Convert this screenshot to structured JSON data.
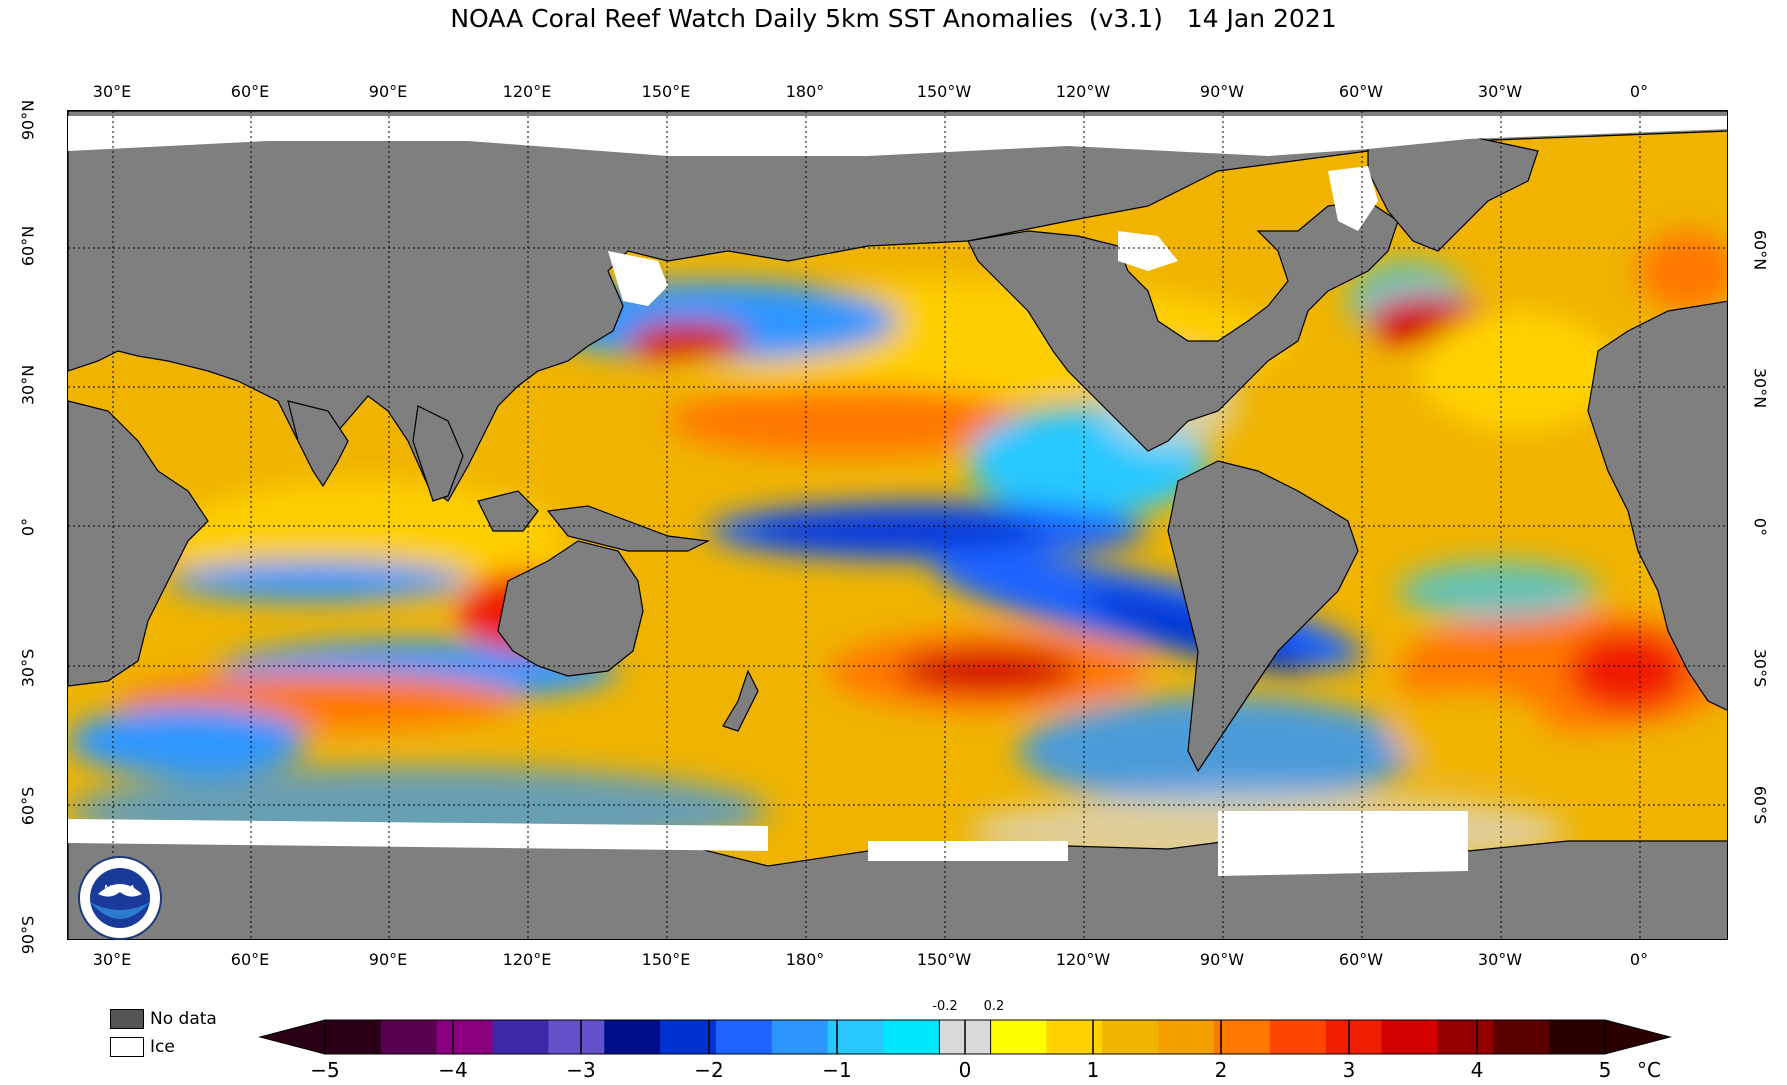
{
  "title": "NOAA Coral Reef Watch Daily 5km SST Anomalies  (v3.1)   14 Jan 2021",
  "lon_labels": [
    "30°E",
    "60°E",
    "90°E",
    "120°E",
    "150°E",
    "180°",
    "150°W",
    "120°W",
    "90°W",
    "60°W",
    "30°W",
    "0°"
  ],
  "lat_labels_left": [
    "90°N",
    "60°N",
    "30°N",
    "0°",
    "30°S",
    "60°S",
    "90°S"
  ],
  "lat_labels_right": [
    "60°N",
    "30°N",
    "0°",
    "30°S",
    "60°S"
  ],
  "legend": {
    "no_data": {
      "label": "No data",
      "color": "#555555"
    },
    "ice": {
      "label": "Ice",
      "color": "#ffffff"
    }
  },
  "colorbar": {
    "ticks": [
      "−5",
      "−4",
      "−3",
      "−2",
      "−1",
      "0",
      "1",
      "2",
      "3",
      "4",
      "5"
    ],
    "small_ticks": [
      "-0.2",
      "0.2"
    ],
    "unit": "°C",
    "colors_negative": [
      "#2a0016",
      "#5a0050",
      "#8a007e",
      "#3c28a8",
      "#6450c8",
      "#000e8c",
      "#0032d2",
      "#1e64ff",
      "#2d96ff",
      "#28c8ff",
      "#00e6ff"
    ],
    "color_neutral": "#d9d9d9",
    "colors_positive": [
      "#ffff00",
      "#ffd200",
      "#f0b400",
      "#f5a000",
      "#ff7800",
      "#ff4600",
      "#f01e00",
      "#d20000",
      "#960000",
      "#5a0000",
      "#2a0000"
    ]
  },
  "land_color": "#7f7f7f"
}
